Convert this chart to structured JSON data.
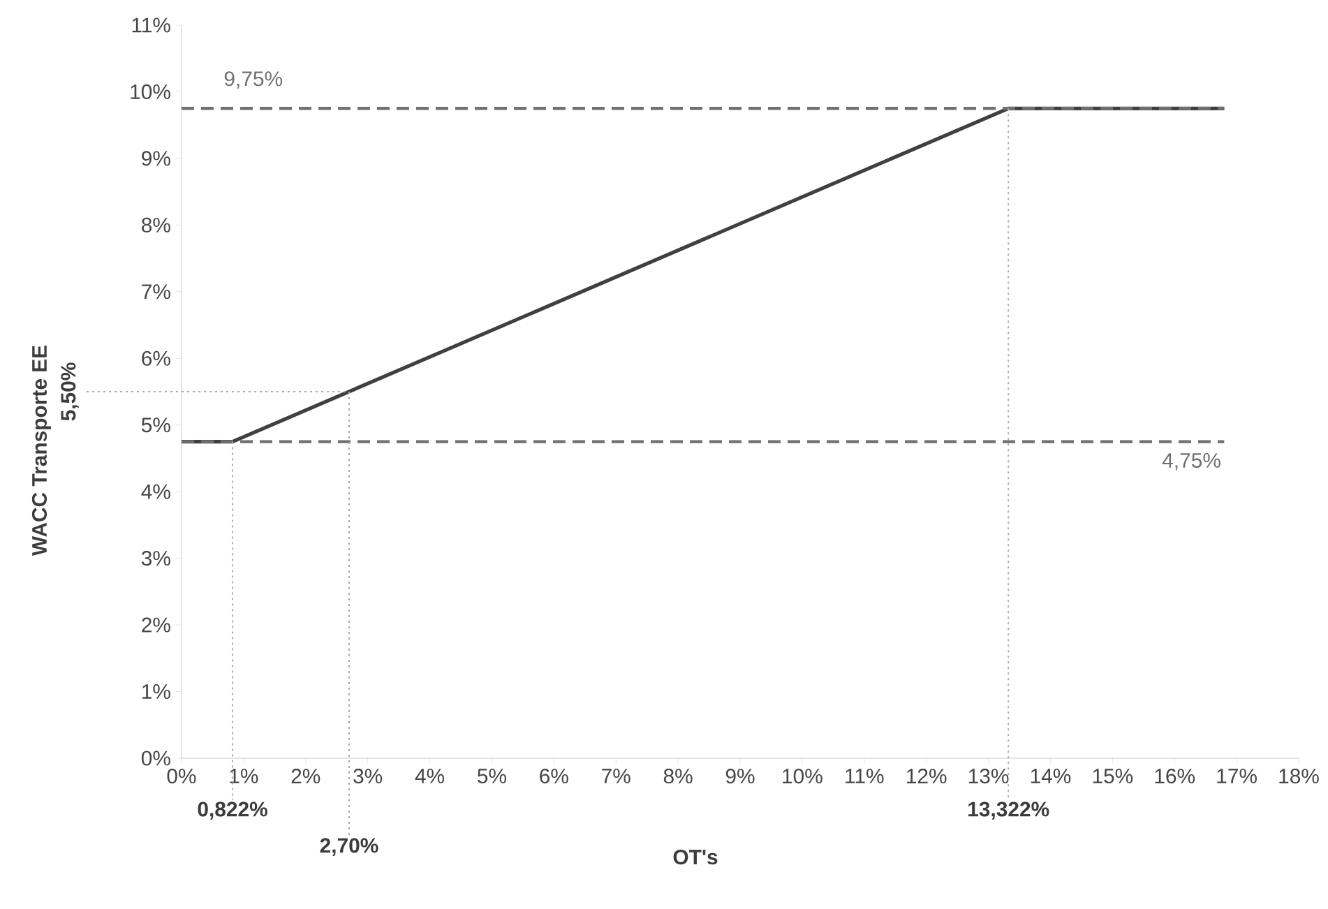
{
  "chart_data": {
    "type": "line",
    "xlabel": "OT's",
    "ylabel": "WACC Transporte EE",
    "x": [
      0,
      0.822,
      13.322,
      16.8
    ],
    "series": [
      {
        "color": "#404040",
        "values": [
          4.75,
          4.75,
          9.75,
          9.75
        ]
      }
    ],
    "xlim": [
      0,
      18
    ],
    "ylim": [
      0,
      11
    ],
    "xticks": [
      {
        "value": 0,
        "label": "0%"
      },
      {
        "value": 1,
        "label": "1%"
      },
      {
        "value": 2,
        "label": "2%"
      },
      {
        "value": 3,
        "label": "3%"
      },
      {
        "value": 4,
        "label": "4%"
      },
      {
        "value": 5,
        "label": "5%"
      },
      {
        "value": 6,
        "label": "6%"
      },
      {
        "value": 7,
        "label": "7%"
      },
      {
        "value": 8,
        "label": "8%"
      },
      {
        "value": 9,
        "label": "9%"
      },
      {
        "value": 10,
        "label": "10%"
      },
      {
        "value": 11,
        "label": "11%"
      },
      {
        "value": 12,
        "label": "12%"
      },
      {
        "value": 13,
        "label": "13%"
      },
      {
        "value": 14,
        "label": "14%"
      },
      {
        "value": 15,
        "label": "15%"
      },
      {
        "value": 16,
        "label": "16%"
      },
      {
        "value": 17,
        "label": "17%"
      },
      {
        "value": 18,
        "label": "18%"
      }
    ],
    "yticks": [
      {
        "value": 0,
        "label": "0%"
      },
      {
        "value": 1,
        "label": "1%"
      },
      {
        "value": 2,
        "label": "2%"
      },
      {
        "value": 3,
        "label": "3%"
      },
      {
        "value": 4,
        "label": "4%"
      },
      {
        "value": 5,
        "label": "5%"
      },
      {
        "value": 6,
        "label": "6%"
      },
      {
        "value": 7,
        "label": "7%"
      },
      {
        "value": 8,
        "label": "8%"
      },
      {
        "value": 9,
        "label": "9%"
      },
      {
        "value": 10,
        "label": "10%"
      },
      {
        "value": 11,
        "label": "11%"
      }
    ],
    "grid": false,
    "marker": "none",
    "line_style": "solid",
    "ref_lines": [
      {
        "axis": "y",
        "value": 9.75,
        "label": "9,75%",
        "line_style": "dashed",
        "color": "#707070"
      },
      {
        "axis": "y",
        "value": 4.75,
        "label": "4,75%",
        "line_style": "dashed",
        "color": "#707070"
      },
      {
        "axis": "y",
        "value": 5.5,
        "label": "5,50%",
        "line_style": "dotted",
        "color": "#aaaaaa"
      },
      {
        "axis": "x",
        "value": 0.822,
        "label": "0,822%",
        "line_style": "dotted",
        "color": "#aaaaaa"
      },
      {
        "axis": "x",
        "value": 2.7,
        "label": "2,70%",
        "line_style": "dotted",
        "color": "#aaaaaa"
      },
      {
        "axis": "x",
        "value": 13.322,
        "label": "13,322%",
        "line_style": "dotted",
        "color": "#aaaaaa"
      }
    ]
  }
}
